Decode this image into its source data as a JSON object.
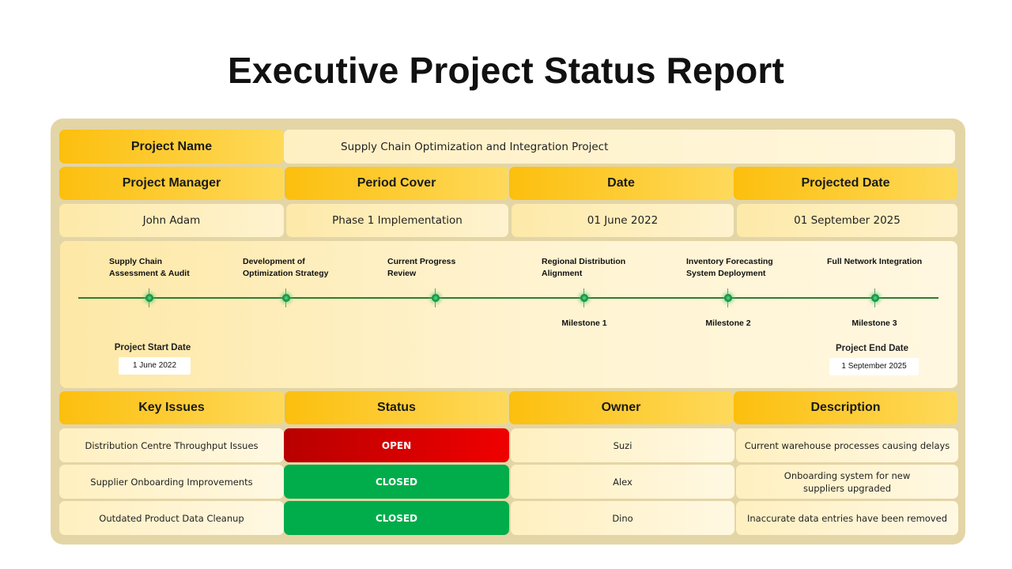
{
  "title": "Executive Project Status Report",
  "project": {
    "name_label": "Project Name",
    "name_value": "Supply Chain Optimization and Integration Project"
  },
  "info_headers": [
    "Project Manager",
    "Period Cover",
    "Date",
    "Projected Date"
  ],
  "info_values": [
    "John Adam",
    "Phase 1 Implementation",
    "01 June 2022",
    "01 September 2025"
  ],
  "timeline": {
    "stages": [
      {
        "line1": "Supply Chain",
        "line2": "Assessment & Audit",
        "milestone": ""
      },
      {
        "line1": "Development of",
        "line2": "Optimization Strategy",
        "milestone": ""
      },
      {
        "line1": "Current Progress",
        "line2": "Review",
        "milestone": ""
      },
      {
        "line1": "Regional Distribution",
        "line2": "Alignment",
        "milestone": "Milestone 1"
      },
      {
        "line1": "Inventory Forecasting",
        "line2": "System Deployment",
        "milestone": "Milestone 2"
      },
      {
        "line1": "Full Network Integration",
        "line2": "",
        "milestone": "Milestone 3"
      }
    ],
    "start_label": "Project Start Date",
    "start_date": "1 June 2022",
    "end_label": "Project End Date",
    "end_date": "1 September 2025"
  },
  "issues_headers": [
    "Key Issues",
    "Status",
    "Owner",
    "Description"
  ],
  "issues": [
    {
      "issue": "Distribution Centre Throughput Issues",
      "status": "OPEN",
      "owner": "Suzi",
      "description": "Current warehouse processes causing delays"
    },
    {
      "issue": "Supplier Onboarding Improvements",
      "status": "CLOSED",
      "owner": "Alex",
      "description": "Onboarding system for new suppliers upgraded"
    },
    {
      "issue": "Outdated Product Data Cleanup",
      "status": "CLOSED",
      "owner": "Dino",
      "description": "Inaccurate data entries have been removed"
    }
  ],
  "colors": {
    "open": "#e00000",
    "closed": "#00ad4a",
    "header_gold": "#fcbf0e",
    "timeline_line": "#2e7d32"
  }
}
